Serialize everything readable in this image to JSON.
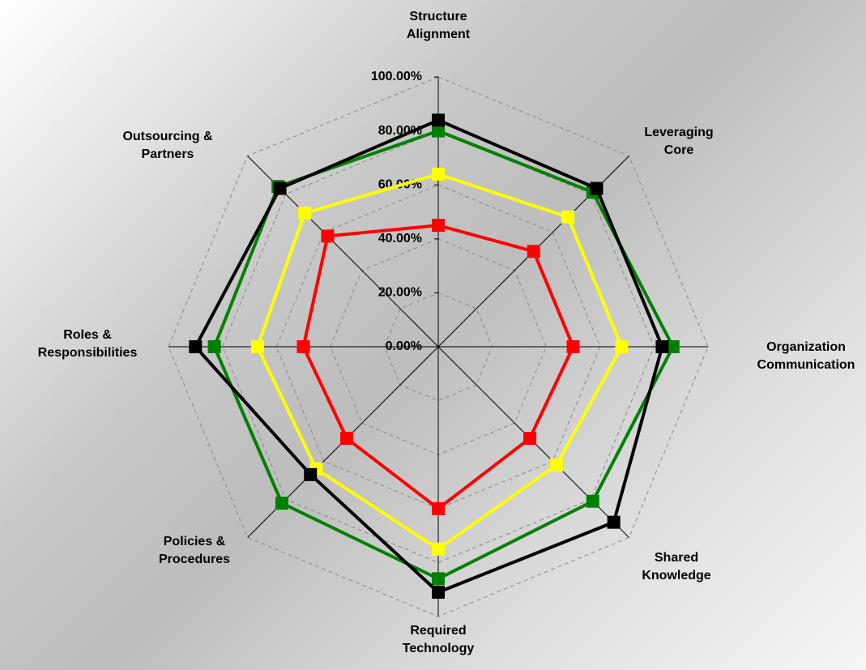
{
  "chart_data": {
    "type": "radar",
    "categories": [
      "Structure Alignment",
      "Leveraging Core",
      "Organization Communication",
      "Shared Knowledge",
      "Required Technology",
      "Policies & Procedures",
      "Roles & Responsibilities",
      "Outsourcing & Partners"
    ],
    "series": [
      {
        "color": "#008000",
        "values": [
          80,
          81,
          87,
          81,
          86,
          82,
          83,
          84
        ]
      },
      {
        "color": "#ffff00",
        "values": [
          64,
          68,
          68,
          62,
          75,
          64,
          67,
          70
        ]
      },
      {
        "color": "#ff0000",
        "values": [
          45,
          50,
          50,
          48,
          60,
          48,
          50,
          58
        ]
      },
      {
        "color": "#000000",
        "values": [
          84,
          83,
          83,
          92,
          91,
          67,
          90,
          83
        ]
      }
    ],
    "rlim": [
      0,
      100
    ],
    "rticks": [
      {
        "value": 0,
        "label": "0.00%"
      },
      {
        "value": 20,
        "label": "20.00%"
      },
      {
        "value": 40,
        "label": "40.00%"
      },
      {
        "value": 60,
        "label": "60.00%"
      },
      {
        "value": 80,
        "label": "80.00%"
      },
      {
        "value": 100,
        "label": "100.00%"
      }
    ],
    "grid": true
  }
}
